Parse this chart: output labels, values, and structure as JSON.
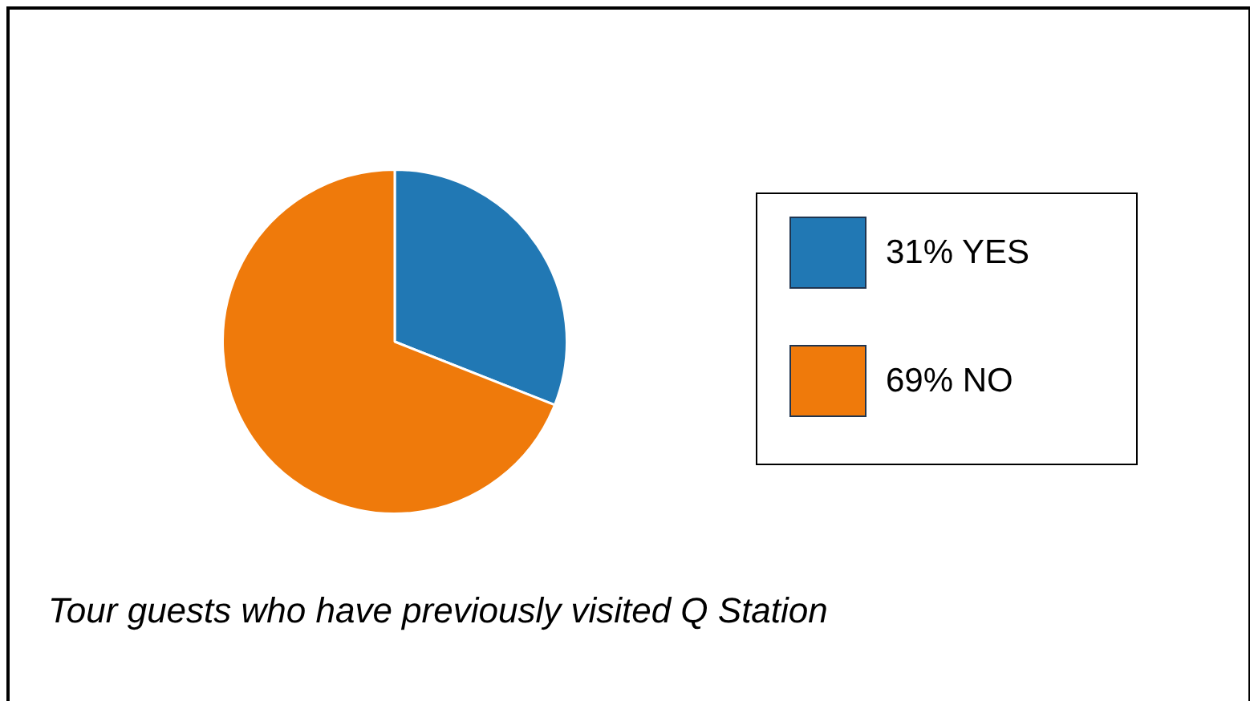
{
  "chart_data": {
    "type": "pie",
    "categories": [
      "31% YES",
      "69% NO"
    ],
    "values": [
      31,
      69
    ],
    "colors": [
      "#2178b4",
      "#ef7a0b"
    ],
    "legend": "right",
    "annotations": [
      "Tour guests who have previously visited Q Station"
    ]
  }
}
